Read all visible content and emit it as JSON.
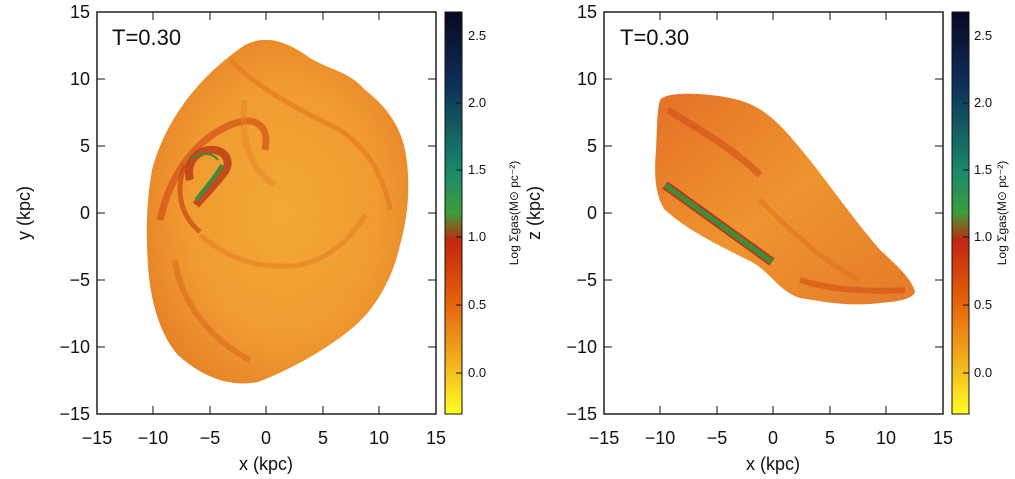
{
  "panels": [
    {
      "id": "xy",
      "time_label": "T=0.30",
      "xlabel": "x (kpc)",
      "ylabel": "y (kpc)",
      "xticks": [
        "−15",
        "−10",
        "−5",
        "0",
        "5",
        "10",
        "15"
      ],
      "yticks": [
        "15",
        "10",
        "5",
        "0",
        "−5",
        "−10",
        "−15"
      ]
    },
    {
      "id": "xz",
      "time_label": "T=0.30",
      "xlabel": "x (kpc)",
      "ylabel": "z (kpc)",
      "xticks": [
        "−15",
        "−10",
        "−5",
        "0",
        "5",
        "10",
        "15"
      ],
      "yticks": [
        "15",
        "10",
        "5",
        "0",
        "−5",
        "−10",
        "−15"
      ]
    }
  ],
  "colorbar": {
    "label": "Log Σgas(M⊙ pc⁻²)",
    "ticks": [
      "2.5",
      "2.0",
      "1.5",
      "1.0",
      "0.5",
      "0.0"
    ],
    "colors": [
      "#0a0a2a",
      "#0f3d66",
      "#1e8a6e",
      "#3a9a3e",
      "#c22a10",
      "#e8650a",
      "#f2a81a",
      "#ffff1e"
    ]
  }
}
